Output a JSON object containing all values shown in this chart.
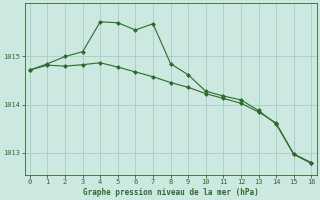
{
  "line1_x": [
    0,
    1,
    2,
    3,
    4,
    5,
    6,
    7,
    8,
    9,
    10,
    11,
    12,
    13,
    14,
    15,
    16
  ],
  "line1_y": [
    1014.72,
    1014.82,
    1014.8,
    1014.83,
    1014.87,
    1014.78,
    1014.68,
    1014.58,
    1014.46,
    1014.36,
    1014.23,
    1014.13,
    1014.03,
    1013.85,
    1013.62,
    1012.98,
    1012.8
  ],
  "line2_x": [
    0,
    1,
    2,
    3,
    4,
    5,
    6,
    7,
    8,
    9,
    10,
    11,
    12,
    13,
    14,
    15,
    16
  ],
  "line2_y": [
    1014.72,
    1014.85,
    1015.0,
    1015.1,
    1015.72,
    1015.7,
    1015.55,
    1015.68,
    1014.85,
    1014.62,
    1014.28,
    1014.18,
    1014.1,
    1013.88,
    1013.6,
    1012.97,
    1012.78
  ],
  "line_color": "#2d6a2d",
  "marker_color": "#2d6a2d",
  "bg_color": "#cce8e0",
  "grid_color": "#9dc8be",
  "xlabel": "Graphe pression niveau de la mer (hPa)",
  "xlabel_color": "#2d6a2d",
  "tick_color": "#2d6a2d",
  "ylim": [
    1012.55,
    1016.1
  ],
  "xlim": [
    -0.3,
    16.3
  ],
  "yticks": [
    1013,
    1014,
    1015
  ],
  "xticks": [
    0,
    1,
    2,
    3,
    4,
    5,
    6,
    7,
    8,
    9,
    10,
    11,
    12,
    13,
    14,
    15,
    16
  ],
  "figsize": [
    3.2,
    2.0
  ],
  "dpi": 100
}
